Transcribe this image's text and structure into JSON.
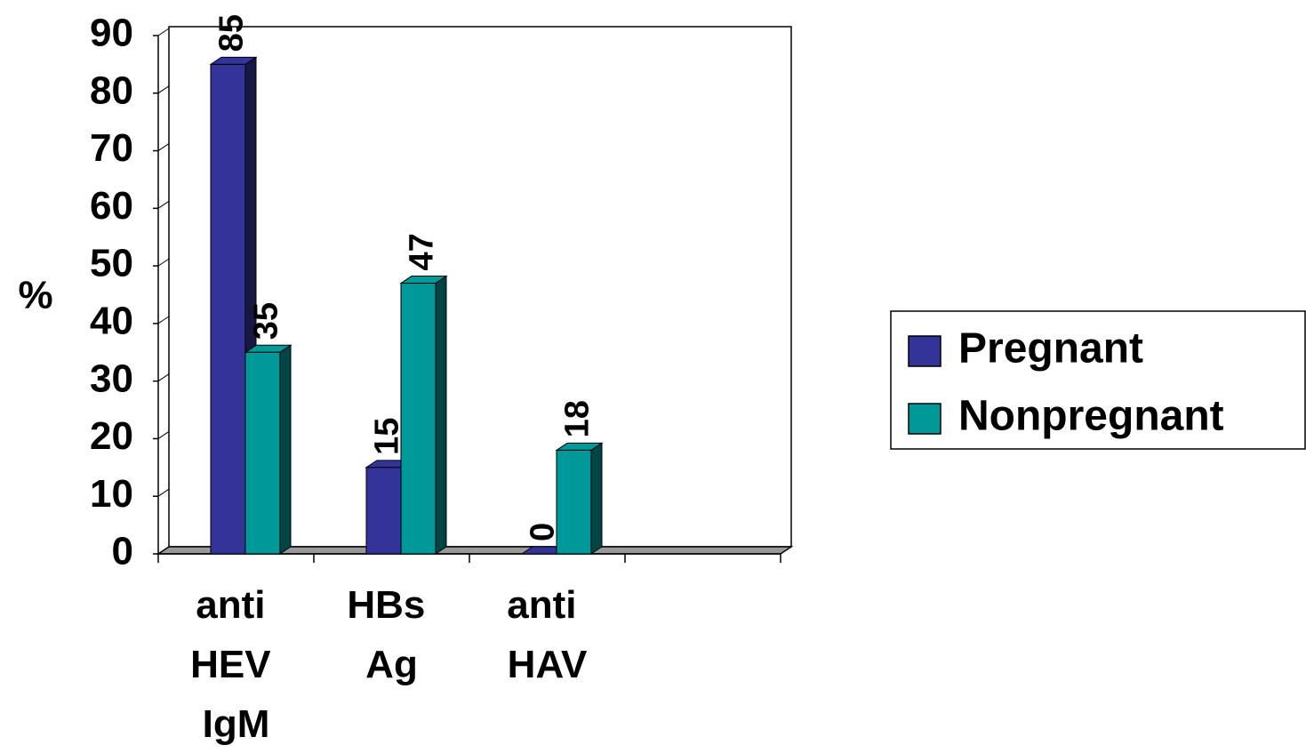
{
  "chart_data": {
    "type": "bar3d",
    "y_label": "%",
    "categories": [
      "anti HEV IgM",
      "HBs Ag",
      "anti HAV",
      null
    ],
    "series": [
      {
        "name": "Pregnant",
        "color": "#333399",
        "values": [
          85,
          15,
          0,
          null
        ]
      },
      {
        "name": "Nonpregnant",
        "color": "#009999",
        "values": [
          35,
          47,
          18,
          null
        ]
      }
    ],
    "ylim": [
      0,
      90
    ],
    "yticks": [
      0,
      10,
      20,
      30,
      40,
      50,
      60,
      70,
      80,
      90
    ],
    "legend": "right"
  }
}
